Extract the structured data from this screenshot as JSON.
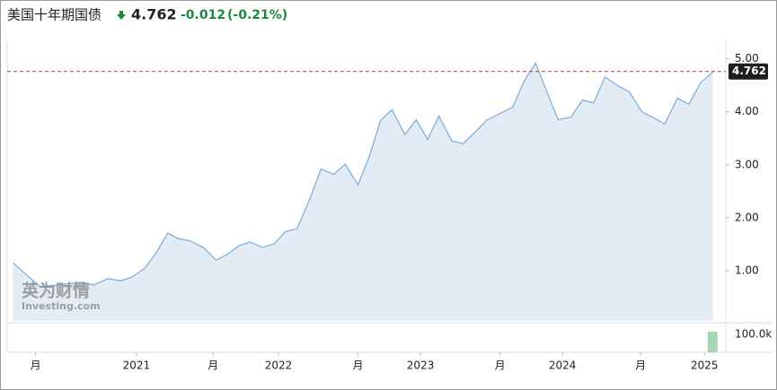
{
  "header": {
    "title": "美国十年期国债",
    "change": "-0.012",
    "change_pct": "(-0.21%)"
  },
  "chart_data": {
    "type": "area",
    "current_value": 4.762,
    "watermark": [
      "英为财情",
      "Investing.com"
    ],
    "x": [
      2020.13,
      2020.32,
      2020.45,
      2020.61,
      2020.7,
      2020.8,
      2020.89,
      2020.97,
      2021.06,
      2021.14,
      2021.22,
      2021.29,
      2021.38,
      2021.47,
      2021.56,
      2021.63,
      2021.72,
      2021.8,
      2021.89,
      2021.97,
      2022.05,
      2022.13,
      2022.22,
      2022.3,
      2022.39,
      2022.47,
      2022.56,
      2022.64,
      2022.72,
      2022.8,
      2022.89,
      2022.97,
      2023.05,
      2023.13,
      2023.22,
      2023.3,
      2023.39,
      2023.47,
      2023.56,
      2023.65,
      2023.73,
      2023.81,
      2023.89,
      2023.97,
      2024.06,
      2024.14,
      2024.22,
      2024.3,
      2024.39,
      2024.47,
      2024.56,
      2024.64,
      2024.72,
      2024.81,
      2024.89,
      2024.97,
      2025.06
    ],
    "series": [
      {
        "color": "#79acd8",
        "fill": "#e3ecf5",
        "values": [
          1.15,
          0.7,
          0.73,
          0.78,
          0.73,
          0.85,
          0.81,
          0.88,
          1.05,
          1.34,
          1.71,
          1.61,
          1.56,
          1.44,
          1.2,
          1.29,
          1.47,
          1.54,
          1.44,
          1.51,
          1.74,
          1.79,
          2.35,
          2.92,
          2.82,
          3.01,
          2.62,
          3.16,
          3.84,
          4.04,
          3.57,
          3.85,
          3.48,
          3.92,
          3.45,
          3.4,
          3.63,
          3.85,
          3.97,
          4.09,
          4.58,
          4.92,
          4.38,
          3.85,
          3.9,
          4.22,
          4.17,
          4.66,
          4.49,
          4.38,
          4.0,
          3.89,
          3.77,
          4.26,
          4.14,
          4.54,
          4.76
        ]
      }
    ],
    "xlim": [
      2020.09,
      2025.15
    ],
    "xticks": [
      {
        "value": 2020.29,
        "label": "月"
      },
      2021,
      {
        "value": 2021.54,
        "label": "月"
      },
      2022,
      {
        "value": 2022.56,
        "label": "月"
      },
      2023,
      {
        "value": 2023.56,
        "label": "月"
      },
      2024,
      {
        "value": 2024.55,
        "label": "月"
      },
      2025
    ],
    "ylim": [
      0.05,
      5.35
    ],
    "yticks": [
      {
        "value": 1,
        "label": "1.00"
      },
      {
        "value": 2,
        "label": "2.00"
      },
      {
        "value": 3,
        "label": "3.00"
      },
      {
        "value": 4,
        "label": "4.00"
      },
      {
        "value": 5,
        "label": "5.00"
      }
    ],
    "volume": {
      "x": 2025.06,
      "value": 115000,
      "color": "#a3d6b2",
      "ylim": [
        0,
        155000
      ],
      "yticks": [
        {
          "value": 100000,
          "label": "100.0k"
        }
      ]
    }
  }
}
